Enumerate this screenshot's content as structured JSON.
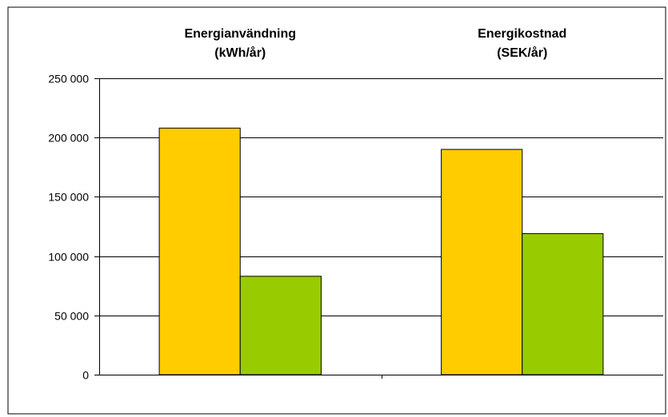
{
  "chart_data": {
    "type": "bar",
    "categories": [
      "Energianvändning\n(kWh/år)",
      "Energikostnad\n(SEK/år)"
    ],
    "series": [
      {
        "values": [
          208000,
          190000
        ],
        "color": "#ffcc00"
      },
      {
        "values": [
          83000,
          119000
        ],
        "color": "#99cc00"
      }
    ],
    "ylim": [
      0,
      250000
    ],
    "yticks": [
      0,
      50000,
      100000,
      150000,
      200000,
      250000
    ],
    "ytick_labels": [
      "0",
      "50 000",
      "100 000",
      "150 000",
      "200 000",
      "250 000"
    ],
    "grid": true,
    "legend": "none",
    "xlabel": "",
    "ylabel": "",
    "title": ""
  }
}
